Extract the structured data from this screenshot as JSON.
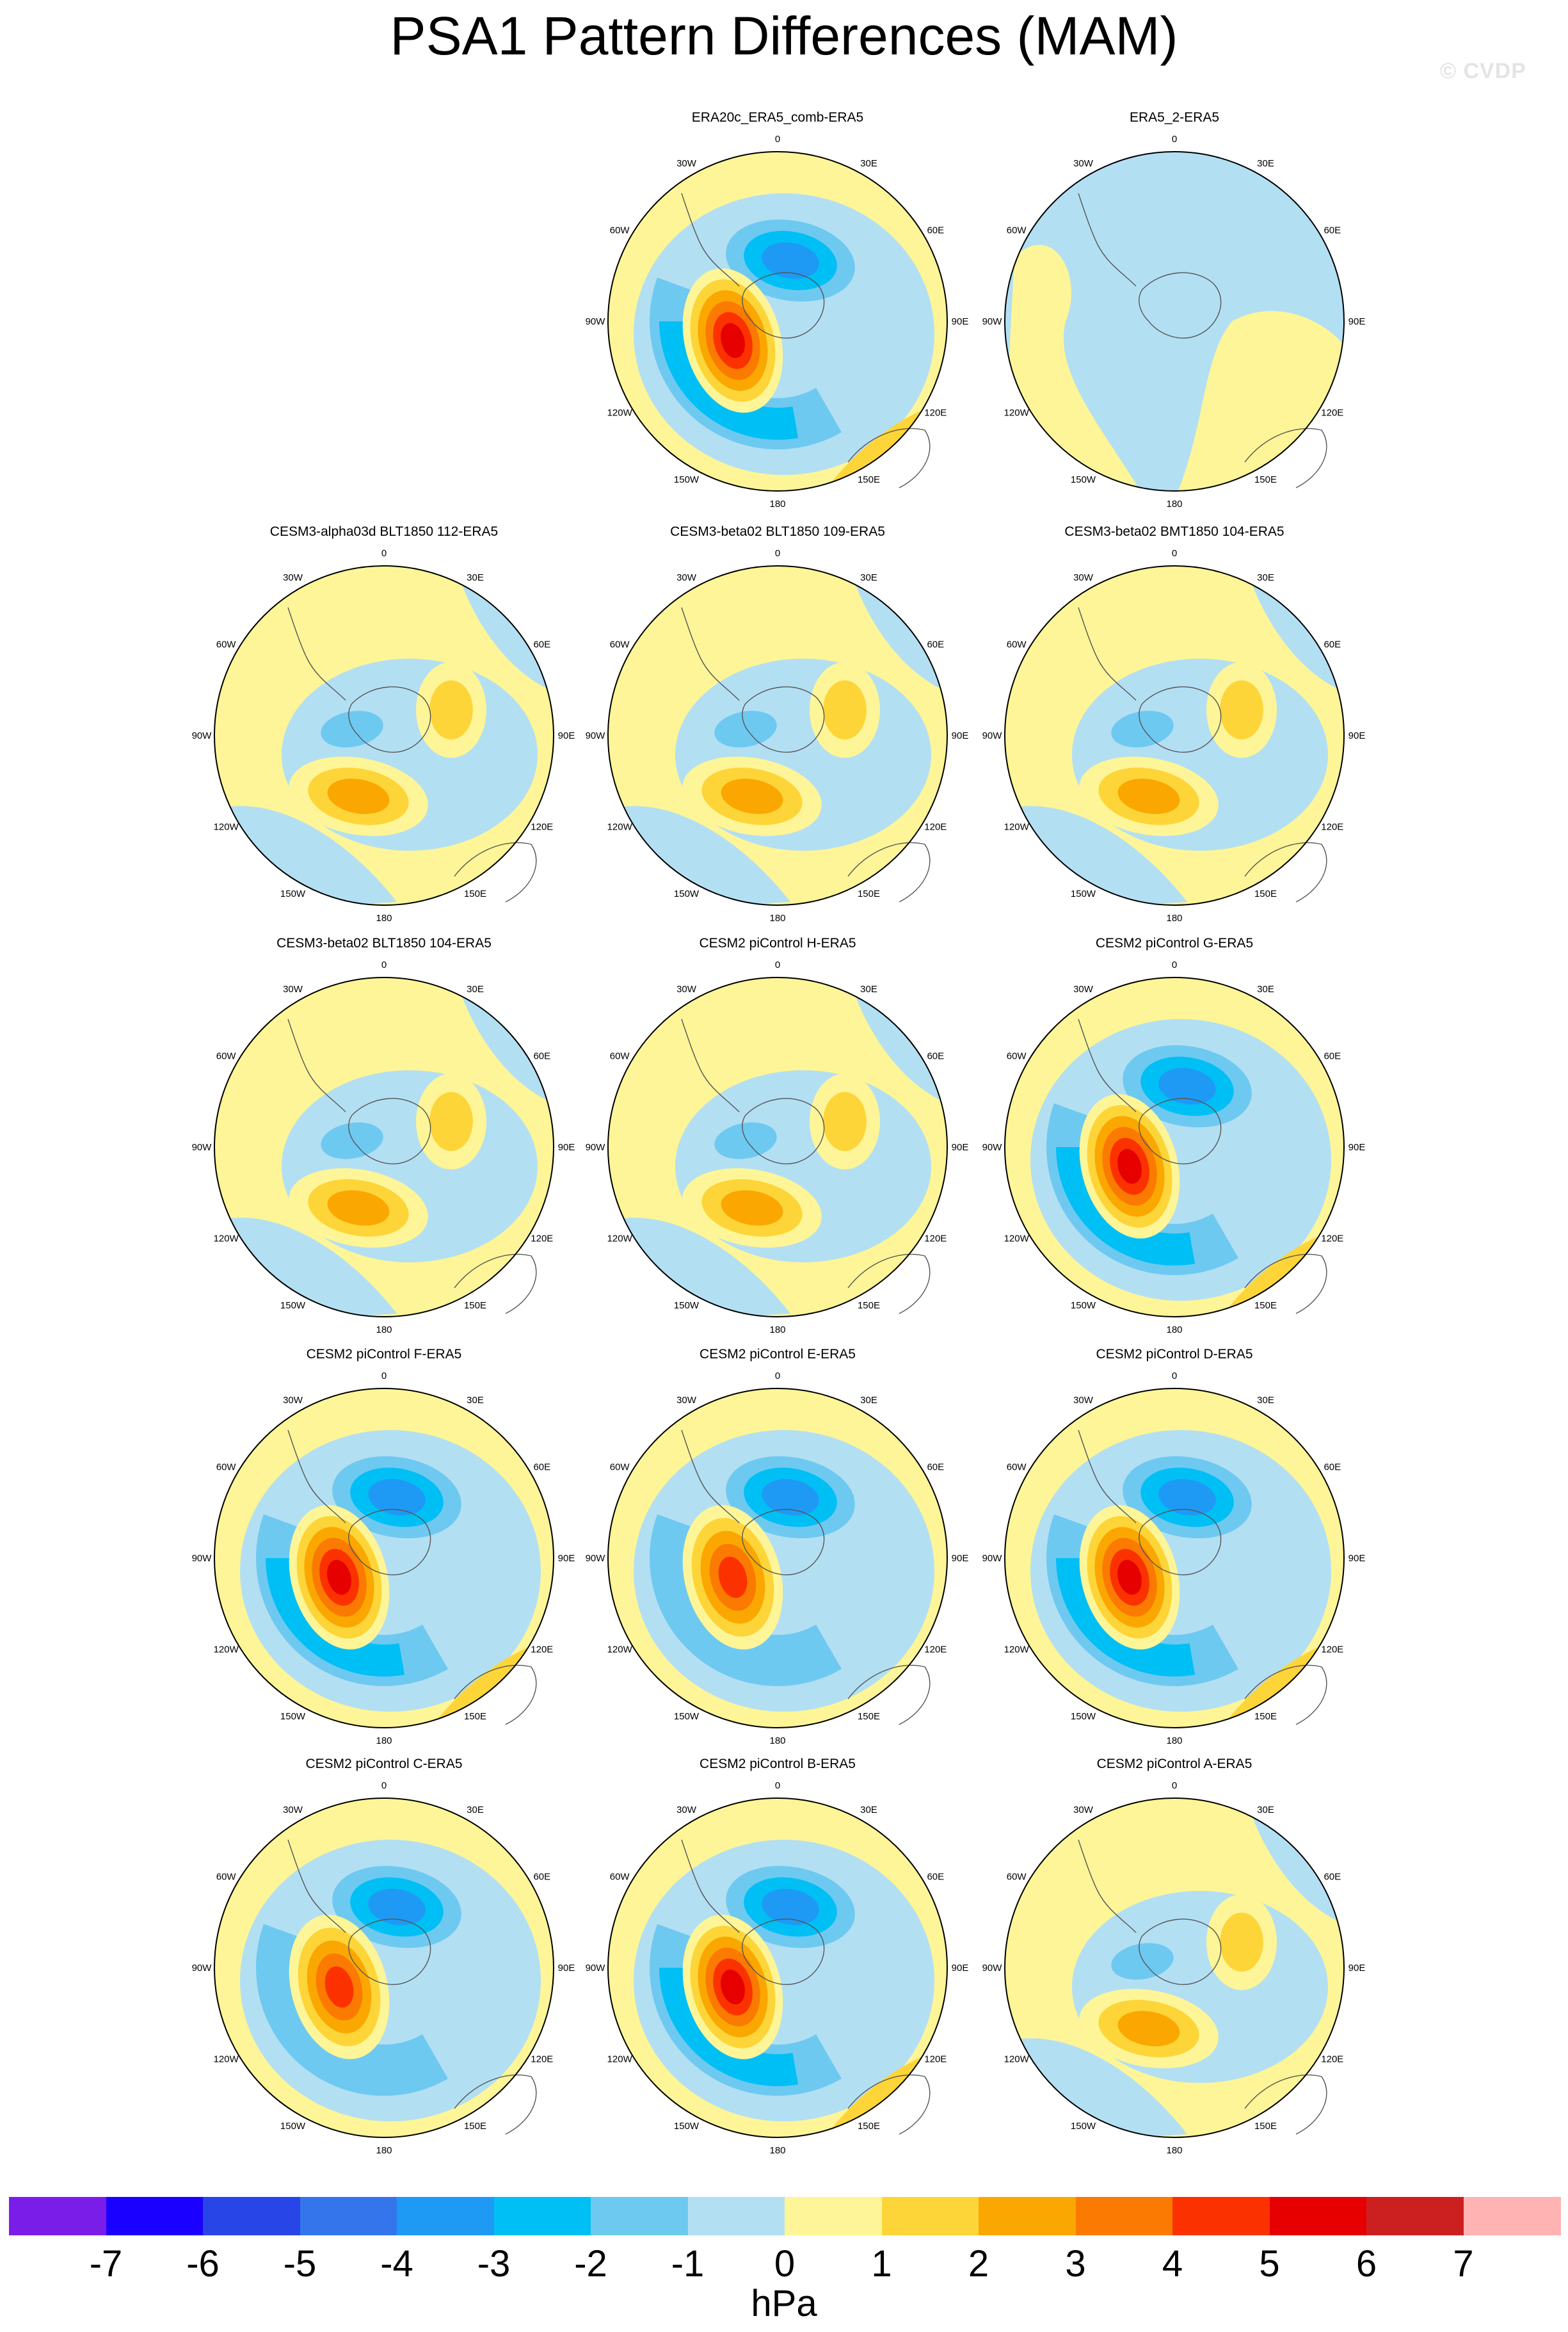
{
  "title": "PSA1 Pattern Differences (MAM)",
  "watermark": "© CVDP",
  "colorbar": {
    "units": "hPa",
    "labels": [
      "-7",
      "-6",
      "-5",
      "-4",
      "-3",
      "-2",
      "-1",
      "0",
      "1",
      "2",
      "3",
      "4",
      "5",
      "6",
      "7"
    ],
    "colors": [
      "#7b1de8",
      "#1a00ff",
      "#2845e8",
      "#3575ec",
      "#1e9af5",
      "#00bff5",
      "#6ec9f0",
      "#b3dff3",
      "#fdf597",
      "#fdd538",
      "#fba701",
      "#fb7a01",
      "#fb3200",
      "#e70000",
      "#cc1f1f",
      "#ffb3b3"
    ]
  },
  "lon_labels": [
    "0",
    "30E",
    "60E",
    "90E",
    "120E",
    "150E",
    "180",
    "150W",
    "120W",
    "90W",
    "60W",
    "30W"
  ],
  "panels": [
    {
      "title": "ERA20c_ERA5_comb-ERA5",
      "style": "strong"
    },
    {
      "title": "ERA5_2-ERA5",
      "style": "flat"
    },
    {
      "title": "CESM3-alpha03d BLT1850 112-ERA5",
      "style": "weak"
    },
    {
      "title": "CESM3-beta02 BLT1850 109-ERA5",
      "style": "weak"
    },
    {
      "title": "CESM3-beta02 BMT1850 104-ERA5",
      "style": "weak"
    },
    {
      "title": "CESM3-beta02 BLT1850 104-ERA5",
      "style": "weak"
    },
    {
      "title": "CESM2 piControl H-ERA5",
      "style": "weak"
    },
    {
      "title": "CESM2 piControl G-ERA5",
      "style": "strong"
    },
    {
      "title": "CESM2 piControl F-ERA5",
      "style": "strong"
    },
    {
      "title": "CESM2 piControl E-ERA5",
      "style": "medium"
    },
    {
      "title": "CESM2 piControl D-ERA5",
      "style": "strong"
    },
    {
      "title": "CESM2 piControl C-ERA5",
      "style": "medium"
    },
    {
      "title": "CESM2 piControl B-ERA5",
      "style": "strong"
    },
    {
      "title": "CESM2 piControl A-ERA5",
      "style": "weak"
    }
  ]
}
